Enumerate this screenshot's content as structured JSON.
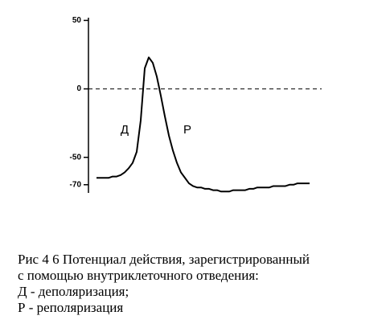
{
  "chart_data": {
    "type": "line",
    "yticks": [
      50,
      0,
      -50,
      -70
    ],
    "ylim": [
      -76,
      52
    ],
    "reference_line": 0,
    "annotations": [
      "Д",
      "Р"
    ],
    "series": [
      {
        "color": "#000000",
        "values": [
          -65,
          -65,
          -65,
          -65,
          -64,
          -64,
          -63,
          -61,
          -58,
          -54,
          -46,
          -23,
          15,
          23,
          19,
          9,
          -5,
          -20,
          -34,
          -45,
          -54,
          -61,
          -65,
          -69,
          -71,
          -72,
          -72,
          -73,
          -73,
          -74,
          -74,
          -75,
          -75,
          -75,
          -74,
          -74,
          -74,
          -74,
          -73,
          -73,
          -72,
          -72,
          -72,
          -72,
          -71,
          -71,
          -71,
          -71,
          -70,
          -70,
          -69,
          -69,
          -69,
          -69
        ]
      }
    ]
  },
  "caption": {
    "lines": [
      "Рис  4 6   Потенциал действия, зарегистрированный",
      "с помощью внутриклеточного отведения:",
      "Д - деполяризация;",
      "Р - реполяризация"
    ]
  }
}
